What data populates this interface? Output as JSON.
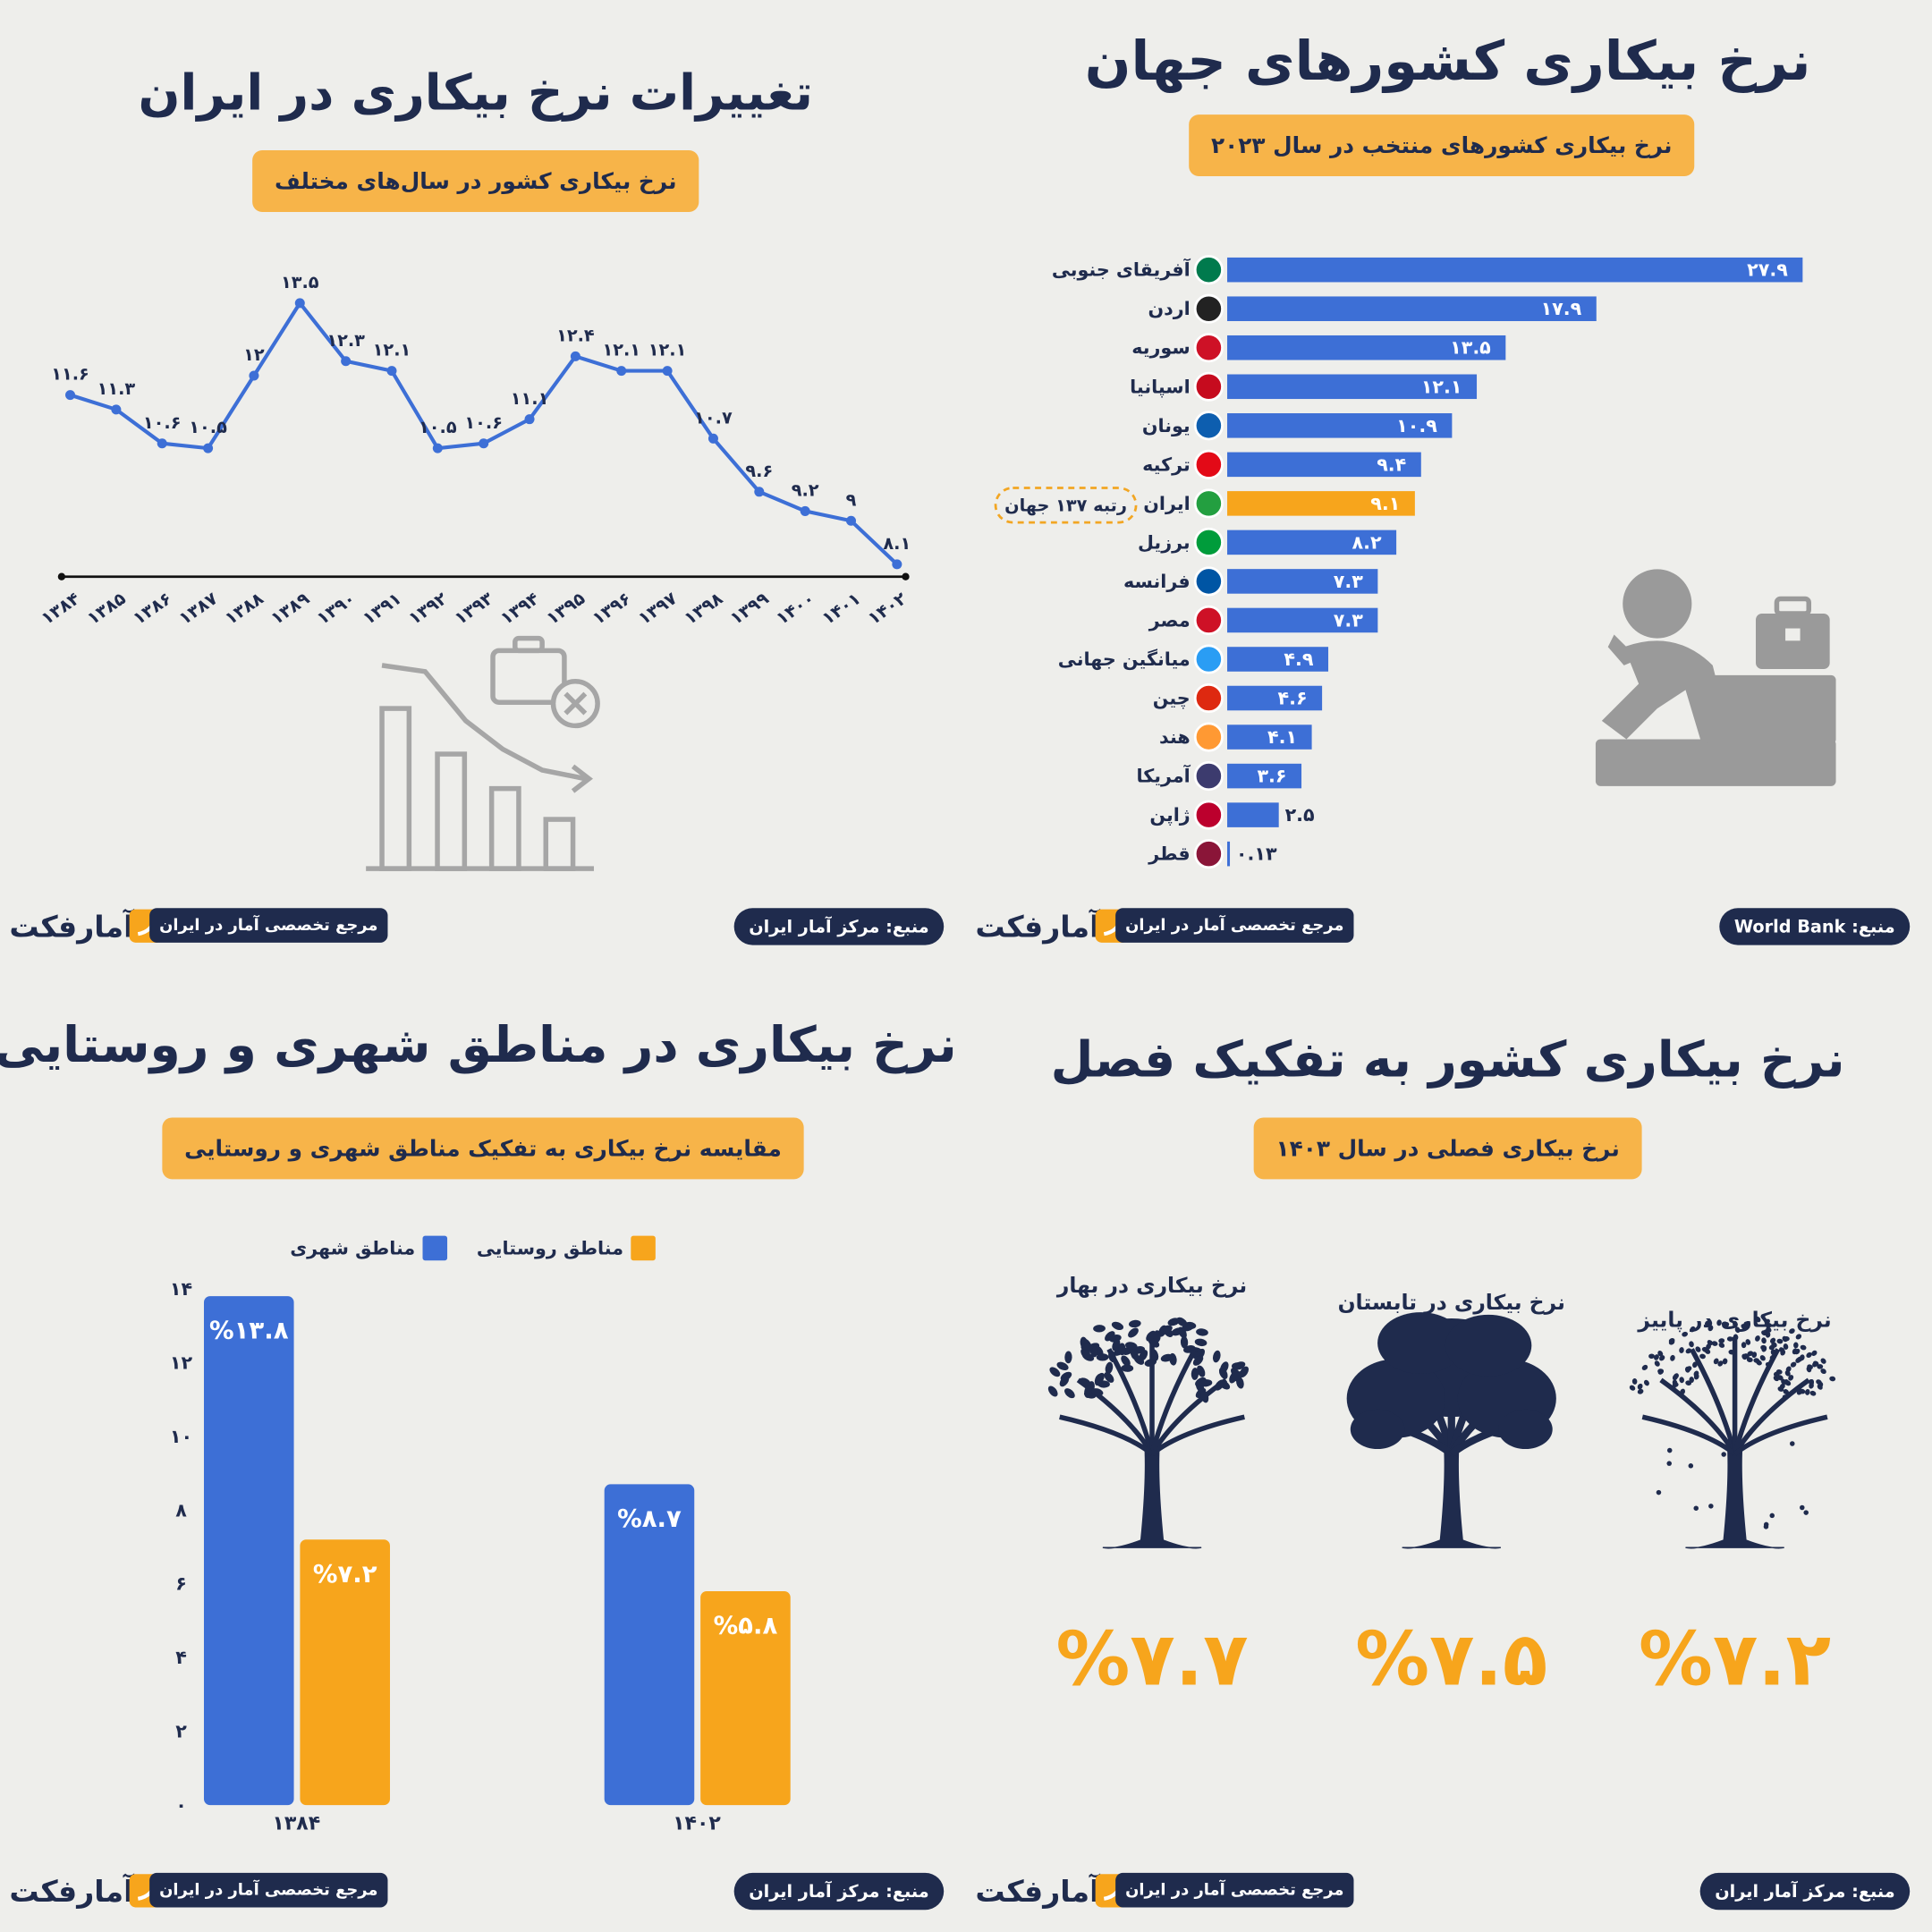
{
  "brand": {
    "tagline": "مرجع تخصصی آمار در ایران",
    "logo": "آمارفکت"
  },
  "chart_data": [
    {
      "type": "line",
      "title": "تغییرات نرخ بیکاری در ایران",
      "subtitle": "نرخ بیکاری کشور در سال‌های مختلف",
      "source": "منبع: مرکز آمار ایران",
      "categories": [
        "۱۳۸۴",
        "۱۳۸۵",
        "۱۳۸۶",
        "۱۳۸۷",
        "۱۳۸۸",
        "۱۳۸۹",
        "۱۳۹۰",
        "۱۳۹۱",
        "۱۳۹۲",
        "۱۳۹۳",
        "۱۳۹۴",
        "۱۳۹۵",
        "۱۳۹۶",
        "۱۳۹۷",
        "۱۳۹۸",
        "۱۳۹۹",
        "۱۴۰۰",
        "۱۴۰۱",
        "۱۴۰۲"
      ],
      "values": [
        11.6,
        11.3,
        10.6,
        10.5,
        12,
        13.5,
        12.3,
        12.1,
        10.5,
        10.6,
        11.1,
        12.4,
        12.1,
        12.1,
        10.7,
        9.6,
        9.2,
        9,
        8.1
      ],
      "value_labels": [
        "۱۱.۶",
        "۱۱.۳",
        "۱۰.۶",
        "۱۰.۵",
        "۱۲",
        "۱۳.۵",
        "۱۲.۳",
        "۱۲.۱",
        "۱۰.۵",
        "۱۰.۶",
        "۱۱.۱",
        "۱۲.۴",
        "۱۲.۱",
        "۱۲.۱",
        "۱۰.۷",
        "۹.۶",
        "۹.۲",
        "۹",
        "۸.۱"
      ],
      "color": "#3d6fd6"
    },
    {
      "type": "barh",
      "title": "نرخ بیکاری کشورهای جهان",
      "subtitle": "نرخ بیکاری کشورهای منتخب در سال ۲۰۲۳",
      "source": "منبع: World Bank",
      "annotation": "رتبه ۱۳۷ جهان",
      "categories": [
        "آفریقای جنوبی",
        "اردن",
        "سوریه",
        "اسپانیا",
        "یونان",
        "ترکیه",
        "ایران",
        "برزیل",
        "فرانسه",
        "مصر",
        "میانگین جهانی",
        "چین",
        "هند",
        "آمریکا",
        "ژاپن",
        "قطر"
      ],
      "values": [
        27.9,
        17.9,
        13.5,
        12.1,
        10.9,
        9.4,
        9.1,
        8.2,
        7.3,
        7.3,
        4.9,
        4.6,
        4.1,
        3.6,
        2.5,
        0.13
      ],
      "value_labels": [
        "۲۷.۹",
        "۱۷.۹",
        "۱۳.۵",
        "۱۲.۱",
        "۱۰.۹",
        "۹.۴",
        "۹.۱",
        "۸.۲",
        "۷.۳",
        "۷.۳",
        "۴.۹",
        "۴.۶",
        "۴.۱",
        "۳.۶",
        "۲.۵",
        "۰.۱۳"
      ],
      "colors": [
        "#3d6fd6",
        "#3d6fd6",
        "#3d6fd6",
        "#3d6fd6",
        "#3d6fd6",
        "#3d6fd6",
        "#f7a51c",
        "#3d6fd6",
        "#3d6fd6",
        "#3d6fd6",
        "#3d6fd6",
        "#3d6fd6",
        "#3d6fd6",
        "#3d6fd6",
        "#3d6fd6",
        "#3d6fd6"
      ]
    },
    {
      "type": "bar",
      "title": "نرخ بیکاری در مناطق شهری و روستایی",
      "subtitle": "مقایسه نرخ بیکاری به تفکیک مناطق شهری و روستایی",
      "source": "منبع: مرکز آمار ایران",
      "categories": [
        "۱۳۸۴",
        "۱۴۰۲"
      ],
      "series": [
        {
          "name": "مناطق شهری",
          "color": "#3d6fd6",
          "values": [
            13.8,
            8.7
          ],
          "value_labels": [
            "%۱۳.۸",
            "%۸.۷"
          ]
        },
        {
          "name": "مناطق روستایی",
          "color": "#f7a51c",
          "values": [
            7.2,
            5.8
          ],
          "value_labels": [
            "%۷.۲",
            "%۵.۸"
          ]
        }
      ],
      "ylim": [
        0,
        14
      ],
      "yticks": [
        {
          "value": 0,
          "label": "۰"
        },
        {
          "value": 2,
          "label": "۲"
        },
        {
          "value": 4,
          "label": "۴"
        },
        {
          "value": 6,
          "label": "۶"
        },
        {
          "value": 8,
          "label": "۸"
        },
        {
          "value": 10,
          "label": "۱۰"
        },
        {
          "value": 12,
          "label": "۱۲"
        },
        {
          "value": 14,
          "label": "۱۴"
        }
      ]
    },
    {
      "type": "stat",
      "title": "نرخ بیکاری کشور به تفکیک فصل",
      "subtitle": "نرخ بیکاری فصلی در سال ۱۴۰۳",
      "source": "منبع: مرکز آمار ایران",
      "categories": [
        "نرخ بیکاری در بهار",
        "نرخ بیکاری در تابستان",
        "نرخ بیکاری در پاییز"
      ],
      "values": [
        7.7,
        7.5,
        7.2
      ],
      "value_labels": [
        "%۷.۷",
        "%۷.۵",
        "%۷.۲"
      ],
      "color": "#f7a51c"
    }
  ]
}
